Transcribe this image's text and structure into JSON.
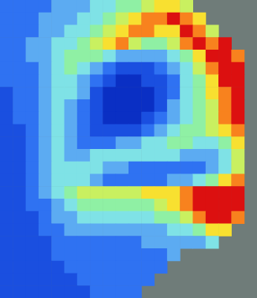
{
  "chart_data": {
    "type": "heatmap",
    "tick_labels": false,
    "zlim": [
      0,
      9
    ],
    "cells": [
      [
        2,
        2,
        2,
        2,
        3,
        3,
        3,
        4,
        4,
        5,
        5,
        6,
        7,
        7,
        6,
        null,
        null,
        null,
        null,
        null
      ],
      [
        2,
        2,
        2,
        3,
        3,
        3,
        4,
        4,
        5,
        6,
        7,
        8,
        8,
        9,
        8,
        7,
        null,
        null,
        null,
        null
      ],
      [
        2,
        2,
        2,
        3,
        3,
        4,
        4,
        5,
        6,
        7,
        8,
        8,
        7,
        7,
        9,
        8,
        6,
        null,
        null,
        null
      ],
      [
        2,
        2,
        3,
        3,
        4,
        4,
        5,
        6,
        7,
        8,
        6,
        5,
        5,
        6,
        8,
        9,
        8,
        9,
        null,
        null
      ],
      [
        2,
        2,
        3,
        3,
        4,
        5,
        5,
        5,
        4,
        3,
        3,
        3,
        3,
        4,
        5,
        7,
        9,
        9,
        8,
        null
      ],
      [
        2,
        2,
        2,
        3,
        4,
        5,
        4,
        3,
        2,
        1,
        1,
        1,
        2,
        3,
        4,
        6,
        8,
        9,
        9,
        null
      ],
      [
        2,
        2,
        2,
        3,
        4,
        4,
        3,
        2,
        1,
        0,
        0,
        1,
        1,
        2,
        4,
        5,
        7,
        9,
        9,
        null
      ],
      [
        1,
        2,
        2,
        3,
        4,
        4,
        3,
        1,
        0,
        0,
        0,
        0,
        1,
        2,
        4,
        5,
        7,
        8,
        9,
        null
      ],
      [
        1,
        2,
        2,
        3,
        4,
        3,
        2,
        1,
        0,
        0,
        0,
        0,
        1,
        3,
        4,
        5,
        6,
        8,
        9,
        null
      ],
      [
        1,
        2,
        2,
        3,
        4,
        3,
        2,
        1,
        0,
        0,
        0,
        1,
        2,
        3,
        4,
        5,
        6,
        8,
        9,
        null
      ],
      [
        1,
        1,
        2,
        3,
        4,
        3,
        2,
        1,
        1,
        1,
        1,
        2,
        3,
        4,
        5,
        5,
        6,
        7,
        8,
        null
      ],
      [
        1,
        1,
        2,
        3,
        4,
        3,
        2,
        2,
        2,
        3,
        3,
        4,
        4,
        5,
        5,
        4,
        4,
        5,
        7,
        null
      ],
      [
        1,
        1,
        2,
        3,
        4,
        3,
        3,
        4,
        4,
        4,
        4,
        4,
        4,
        4,
        3,
        3,
        3,
        4,
        6,
        null
      ],
      [
        1,
        1,
        2,
        3,
        4,
        4,
        4,
        4,
        3,
        3,
        2,
        2,
        2,
        2,
        2,
        2,
        3,
        4,
        6,
        null
      ],
      [
        1,
        1,
        2,
        3,
        4,
        4,
        4,
        3,
        2,
        2,
        2,
        2,
        2,
        3,
        3,
        4,
        5,
        7,
        8,
        null
      ],
      [
        1,
        1,
        2,
        3,
        4,
        5,
        6,
        6,
        6,
        6,
        6,
        7,
        7,
        7,
        8,
        9,
        9,
        9,
        9,
        null
      ],
      [
        1,
        1,
        2,
        2,
        3,
        4,
        5,
        5,
        5,
        5,
        5,
        5,
        6,
        7,
        8,
        9,
        9,
        9,
        9,
        null
      ],
      [
        1,
        1,
        1,
        2,
        3,
        3,
        4,
        4,
        4,
        4,
        4,
        4,
        5,
        5,
        6,
        8,
        9,
        9,
        8,
        null
      ],
      [
        1,
        1,
        1,
        2,
        2,
        3,
        3,
        3,
        3,
        3,
        3,
        3,
        3,
        4,
        4,
        5,
        7,
        7,
        null,
        null
      ],
      [
        1,
        1,
        1,
        1,
        2,
        2,
        2,
        2,
        2,
        2,
        2,
        3,
        3,
        3,
        3,
        3,
        4,
        null,
        null,
        null
      ],
      [
        1,
        1,
        1,
        1,
        2,
        2,
        2,
        2,
        2,
        2,
        2,
        2,
        2,
        3,
        null,
        null,
        null,
        null,
        null,
        null
      ],
      [
        1,
        1,
        1,
        1,
        1,
        2,
        2,
        2,
        2,
        2,
        2,
        2,
        2,
        null,
        null,
        null,
        null,
        null,
        null,
        null
      ],
      [
        1,
        1,
        1,
        1,
        1,
        1,
        2,
        2,
        2,
        2,
        2,
        2,
        null,
        null,
        null,
        null,
        null,
        null,
        null,
        null
      ],
      [
        1,
        1,
        1,
        1,
        1,
        1,
        1,
        2,
        2,
        2,
        2,
        null,
        null,
        null,
        null,
        null,
        null,
        null,
        null,
        null
      ]
    ]
  }
}
